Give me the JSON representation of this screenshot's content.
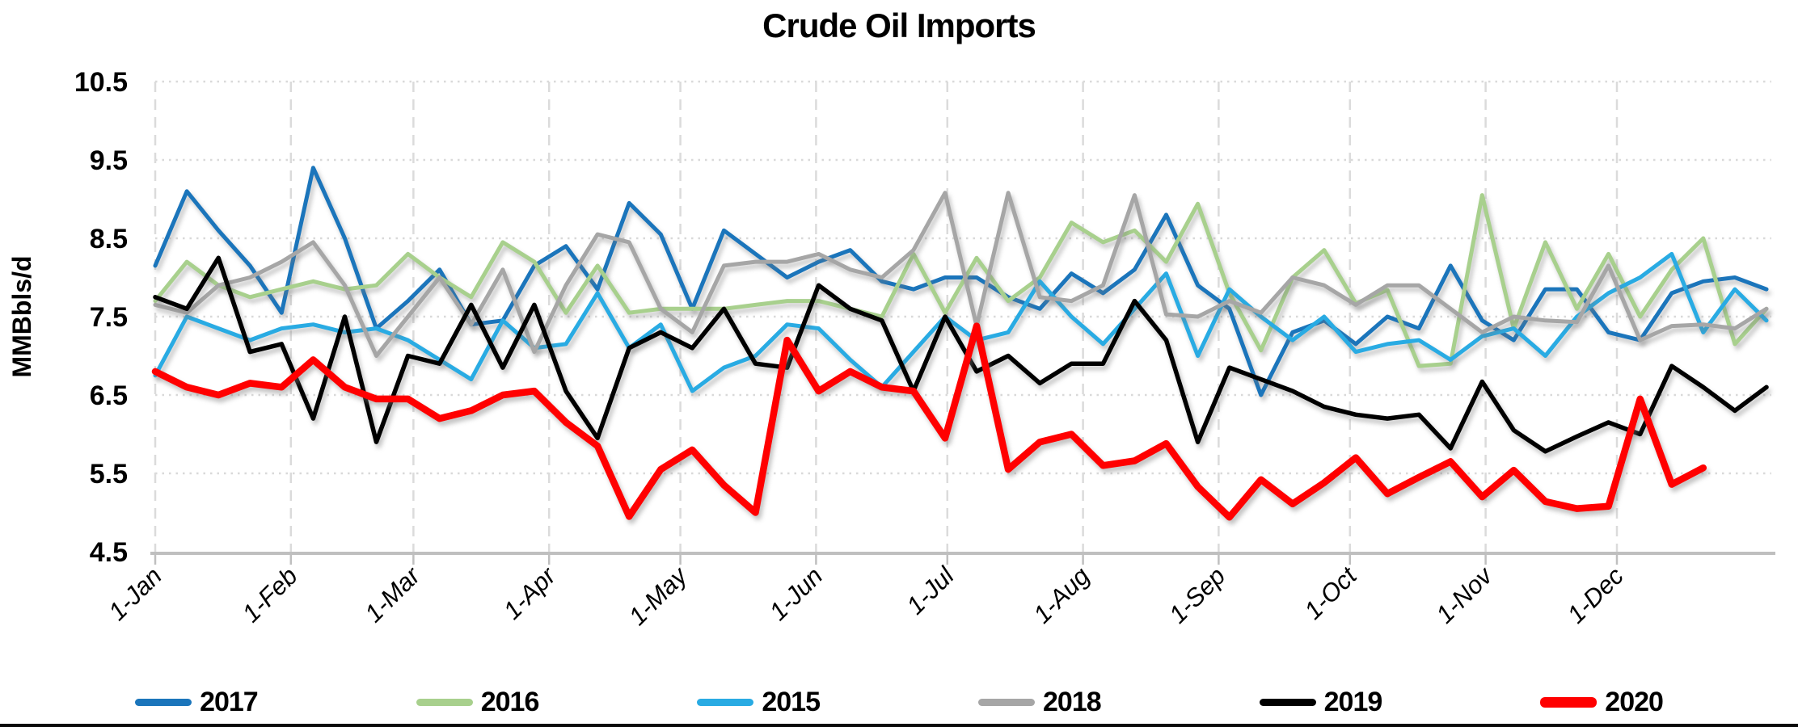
{
  "title": "Crude Oil Imports",
  "y_axis": {
    "label": "MMBbls/d"
  },
  "chart_data": {
    "type": "line",
    "title": "Crude Oil Imports",
    "ylabel": "MMBbls/d",
    "xlabel": "",
    "ylim": [
      4.5,
      10.5
    ],
    "y_tick_step": 1.0,
    "y_ticks": [
      "10.5",
      "9.5",
      "8.5",
      "7.5",
      "6.5",
      "5.5",
      "4.5"
    ],
    "x_ticks": [
      "1-Jan",
      "1-Feb",
      "1-Mar",
      "1-Apr",
      "1-May",
      "1-Jun",
      "1-Jul",
      "1-Aug",
      "1-Sep",
      "1-Oct",
      "1-Nov",
      "1-Dec"
    ],
    "x_unit": "weekly observations, Jan through Dec",
    "grid": "dotted horizontal at each y tick, dashed vertical at each month",
    "legend_position": "bottom",
    "series": [
      {
        "name": "2017",
        "color": "#1B75BB",
        "values": [
          8.15,
          9.1,
          8.6,
          8.15,
          7.55,
          9.4,
          8.5,
          7.35,
          7.7,
          8.1,
          7.4,
          7.45,
          8.15,
          8.4,
          7.85,
          8.95,
          8.55,
          7.6,
          8.6,
          8.3,
          8.0,
          8.2,
          8.35,
          7.95,
          7.85,
          8.0,
          8.0,
          7.75,
          7.6,
          8.05,
          7.8,
          8.1,
          8.8,
          7.9,
          7.6,
          6.5,
          7.3,
          7.45,
          7.15,
          7.5,
          7.35,
          8.15,
          7.45,
          7.2,
          7.85,
          7.85,
          7.3,
          7.2,
          7.8,
          7.95,
          8.0,
          7.85
        ]
      },
      {
        "name": "2016",
        "color": "#A8D08D",
        "values": [
          7.7,
          8.2,
          7.9,
          7.75,
          7.85,
          7.95,
          7.85,
          7.9,
          8.3,
          8.0,
          7.75,
          8.45,
          8.2,
          7.55,
          8.15,
          7.55,
          7.6,
          7.6,
          7.6,
          7.65,
          7.7,
          7.7,
          7.6,
          7.5,
          8.3,
          7.55,
          8.25,
          7.7,
          8.0,
          8.7,
          8.45,
          8.6,
          8.2,
          8.94,
          7.8,
          7.07,
          8.0,
          8.35,
          7.67,
          7.84,
          6.87,
          6.9,
          9.05,
          7.35,
          8.45,
          7.6,
          8.3,
          7.5,
          8.1,
          8.5,
          7.15,
          7.6
        ]
      },
      {
        "name": "2015",
        "color": "#29ABE3",
        "values": [
          6.75,
          7.5,
          7.35,
          7.2,
          7.35,
          7.4,
          7.3,
          7.35,
          7.2,
          6.95,
          6.7,
          7.45,
          7.1,
          7.15,
          7.8,
          7.1,
          7.4,
          6.55,
          6.85,
          7.0,
          7.4,
          7.35,
          6.95,
          6.6,
          7.05,
          7.5,
          7.2,
          7.3,
          7.95,
          7.5,
          7.15,
          7.6,
          8.05,
          7.0,
          7.85,
          7.5,
          7.2,
          7.5,
          7.05,
          7.15,
          7.2,
          6.95,
          7.25,
          7.35,
          7.0,
          7.5,
          7.8,
          8.0,
          8.3,
          7.3,
          7.85,
          7.45
        ]
      },
      {
        "name": "2018",
        "color": "#A6A6A6",
        "values": [
          7.65,
          7.55,
          7.9,
          8.0,
          8.2,
          8.45,
          7.9,
          7.0,
          7.5,
          8.0,
          7.4,
          8.1,
          7.05,
          7.9,
          8.55,
          8.45,
          7.6,
          7.3,
          8.15,
          8.2,
          8.2,
          8.3,
          8.1,
          8.0,
          8.35,
          9.08,
          7.38,
          9.08,
          7.75,
          7.7,
          7.9,
          9.05,
          7.53,
          7.5,
          7.7,
          7.55,
          8.0,
          7.9,
          7.65,
          7.9,
          7.9,
          7.6,
          7.3,
          7.5,
          7.45,
          7.43,
          8.15,
          7.2,
          7.38,
          7.4,
          7.35,
          7.6
        ]
      },
      {
        "name": "2019",
        "color": "#000000",
        "values": [
          7.75,
          7.6,
          8.25,
          7.05,
          7.15,
          6.2,
          7.5,
          5.9,
          7.0,
          6.9,
          7.65,
          6.85,
          7.65,
          6.55,
          5.95,
          7.1,
          7.3,
          7.1,
          7.6,
          6.9,
          6.85,
          7.9,
          7.6,
          7.45,
          6.55,
          7.5,
          6.8,
          7.0,
          6.65,
          6.9,
          6.9,
          7.7,
          7.2,
          5.9,
          6.85,
          6.7,
          6.55,
          6.35,
          6.25,
          6.2,
          6.25,
          5.82,
          6.67,
          6.05,
          5.78,
          5.97,
          6.15,
          6.0,
          6.87,
          6.6,
          6.3,
          6.6
        ]
      },
      {
        "name": "2020",
        "color": "#FF0000",
        "values": [
          6.8,
          6.6,
          6.5,
          6.65,
          6.6,
          6.95,
          6.6,
          6.45,
          6.45,
          6.2,
          6.3,
          6.5,
          6.55,
          6.15,
          5.85,
          4.95,
          5.55,
          5.8,
          5.35,
          5.0,
          7.2,
          6.55,
          6.8,
          6.6,
          6.55,
          5.95,
          7.38,
          5.55,
          5.9,
          6.0,
          5.6,
          5.66,
          5.88,
          5.33,
          4.94,
          5.42,
          5.11,
          5.38,
          5.7,
          5.24,
          5.45,
          5.65,
          5.2,
          5.54,
          5.14,
          5.05,
          5.08,
          6.45,
          5.36,
          5.57
        ]
      }
    ]
  }
}
